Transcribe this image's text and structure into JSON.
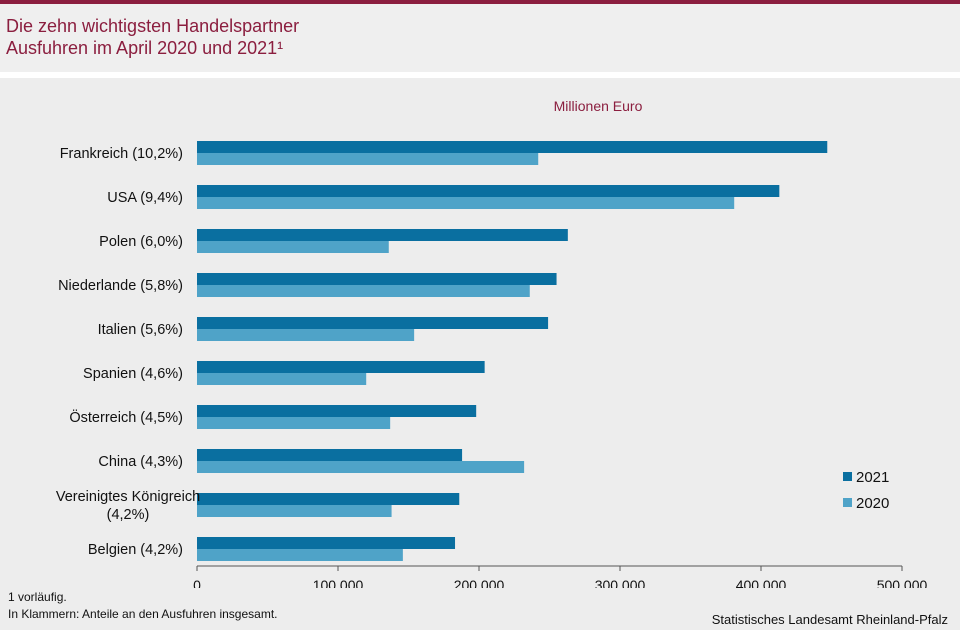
{
  "header": {
    "title_line1": "Die zehn wichtigsten Handelspartner",
    "title_line2": "Ausfuhren im April 2020 und 2021¹"
  },
  "footnotes": {
    "line1": "1 vorläufig.",
    "line2": "In Klammern: Anteile an den Ausfuhren insgesamt."
  },
  "source": "Statistisches Landesamt Rheinland-Pfalz",
  "chart_data": {
    "type": "bar",
    "orientation": "horizontal",
    "unit_label": "Millionen Euro",
    "categories": [
      [
        "Frankreich (10,2%)"
      ],
      [
        "USA (9,4%)"
      ],
      [
        "Polen (6,0%)"
      ],
      [
        "Niederlande (5,8%)"
      ],
      [
        "Italien (5,6%)"
      ],
      [
        "Spanien (4,6%)"
      ],
      [
        "Österreich (4,5%)"
      ],
      [
        "China (4,3%)"
      ],
      [
        "Vereinigtes Königreich",
        "(4,2%)"
      ],
      [
        "Belgien (4,2%)"
      ]
    ],
    "series": [
      {
        "name": "2021",
        "color": "#0a6fa0",
        "values": [
          447000,
          413000,
          263000,
          255000,
          249000,
          204000,
          198000,
          188000,
          186000,
          183000
        ]
      },
      {
        "name": "2020",
        "color": "#4fa3c8",
        "values": [
          242000,
          381000,
          136000,
          236000,
          154000,
          120000,
          137000,
          232000,
          138000,
          146000
        ]
      }
    ],
    "xlim": [
      0,
      500000
    ],
    "xticks": [
      0,
      100000,
      200000,
      300000,
      400000,
      500000
    ],
    "xtick_labels": [
      "0",
      "100.000",
      "200.000",
      "300.000",
      "400.000",
      "500.000"
    ],
    "grid": false,
    "legend_position": "right"
  }
}
